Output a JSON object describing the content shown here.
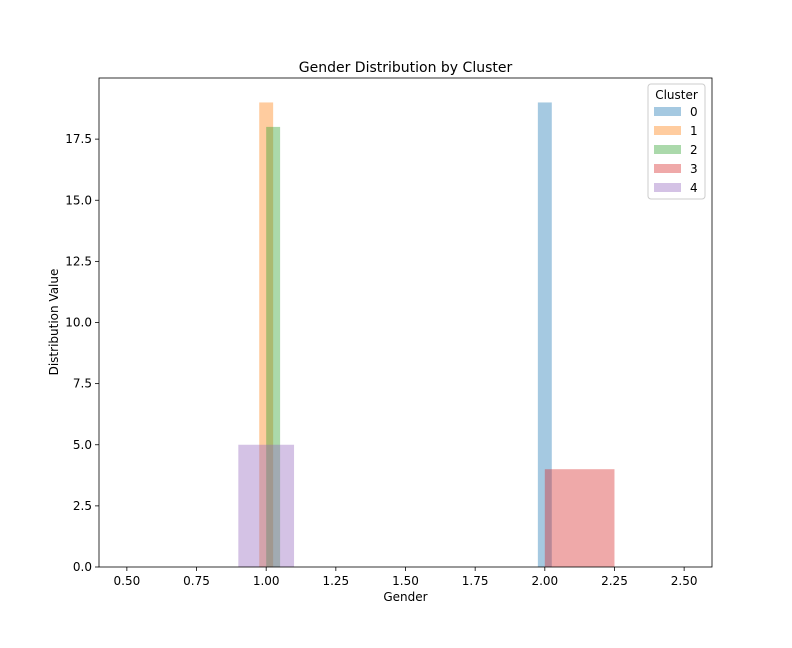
{
  "chart_data": {
    "type": "histogram",
    "title": "Gender Distribution by Cluster",
    "xlabel": "Gender",
    "ylabel": "Distribution Value",
    "xlim": [
      0.4,
      2.6
    ],
    "ylim": [
      0,
      20
    ],
    "xticks": [
      0.5,
      0.75,
      1.0,
      1.25,
      1.5,
      1.75,
      2.0,
      2.25,
      2.5
    ],
    "xtick_labels": [
      "0.50",
      "0.75",
      "1.00",
      "1.25",
      "1.50",
      "1.75",
      "2.00",
      "2.25",
      "2.50"
    ],
    "yticks": [
      0,
      2.5,
      5,
      7.5,
      10,
      12.5,
      15,
      17.5
    ],
    "ytick_labels": [
      "0.0",
      "2.5",
      "5.0",
      "7.5",
      "10.0",
      "12.5",
      "15.0",
      "17.5"
    ],
    "grid": false,
    "legend": {
      "title": "Cluster",
      "position": "top-right"
    },
    "series": [
      {
        "name": "0",
        "color": "#1f77b4",
        "opacity": 0.4,
        "bars": [
          {
            "x0": 1.975,
            "x1": 2.025,
            "value": 19
          }
        ]
      },
      {
        "name": "1",
        "color": "#ff7f0e",
        "opacity": 0.4,
        "bars": [
          {
            "x0": 0.975,
            "x1": 1.025,
            "value": 19
          }
        ]
      },
      {
        "name": "2",
        "color": "#2ca02c",
        "opacity": 0.4,
        "bars": [
          {
            "x0": 1.0,
            "x1": 1.05,
            "value": 18
          }
        ]
      },
      {
        "name": "3",
        "color": "#d62728",
        "opacity": 0.4,
        "bars": [
          {
            "x0": 2.0,
            "x1": 2.25,
            "value": 4
          }
        ]
      },
      {
        "name": "4",
        "color": "#9467bd",
        "opacity": 0.4,
        "bars": [
          {
            "x0": 0.9,
            "x1": 1.1,
            "value": 5
          }
        ]
      }
    ]
  }
}
